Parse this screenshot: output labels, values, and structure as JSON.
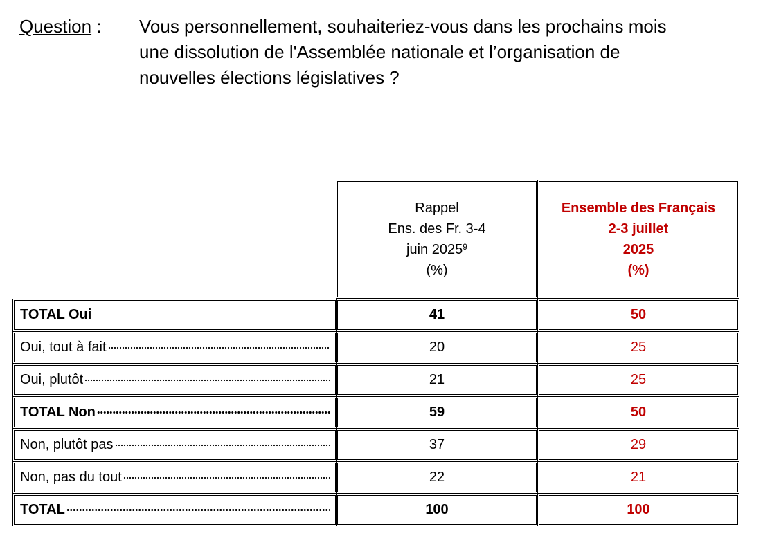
{
  "question": {
    "label": "Question",
    "label_suffix": " :",
    "lines": [
      "Vous personnellement, souhaiteriez-vous dans les prochains mois",
      "une dissolution de l'Assemblée nationale et l’organisation de",
      "nouvelles élections législatives ?"
    ]
  },
  "table": {
    "headers": {
      "previous": {
        "line1": "Rappel",
        "line2": "Ens. des Fr. 3-4",
        "line3": "juin 2025",
        "footnote": "9",
        "line4": "(%)"
      },
      "current": {
        "line1": "Ensemble des Français",
        "line2": "2-3 juillet",
        "line3": "2025",
        "line4": "(%)"
      }
    },
    "rows": [
      {
        "label": "TOTAL Oui",
        "previous": "41",
        "current": "50"
      },
      {
        "label": "Oui, tout à fait",
        "previous": "20",
        "current": "25"
      },
      {
        "label": "Oui, plutôt",
        "previous": "21",
        "current": "25"
      },
      {
        "label": "TOTAL Non",
        "previous": "59",
        "current": "50"
      },
      {
        "label": "Non, plutôt pas",
        "previous": "37",
        "current": "29"
      },
      {
        "label": "Non, pas du tout",
        "previous": "22",
        "current": "21"
      },
      {
        "label": "TOTAL",
        "previous": "100",
        "current": "100"
      }
    ]
  },
  "colors": {
    "accent_red": "#c00000",
    "text": "#000000"
  }
}
